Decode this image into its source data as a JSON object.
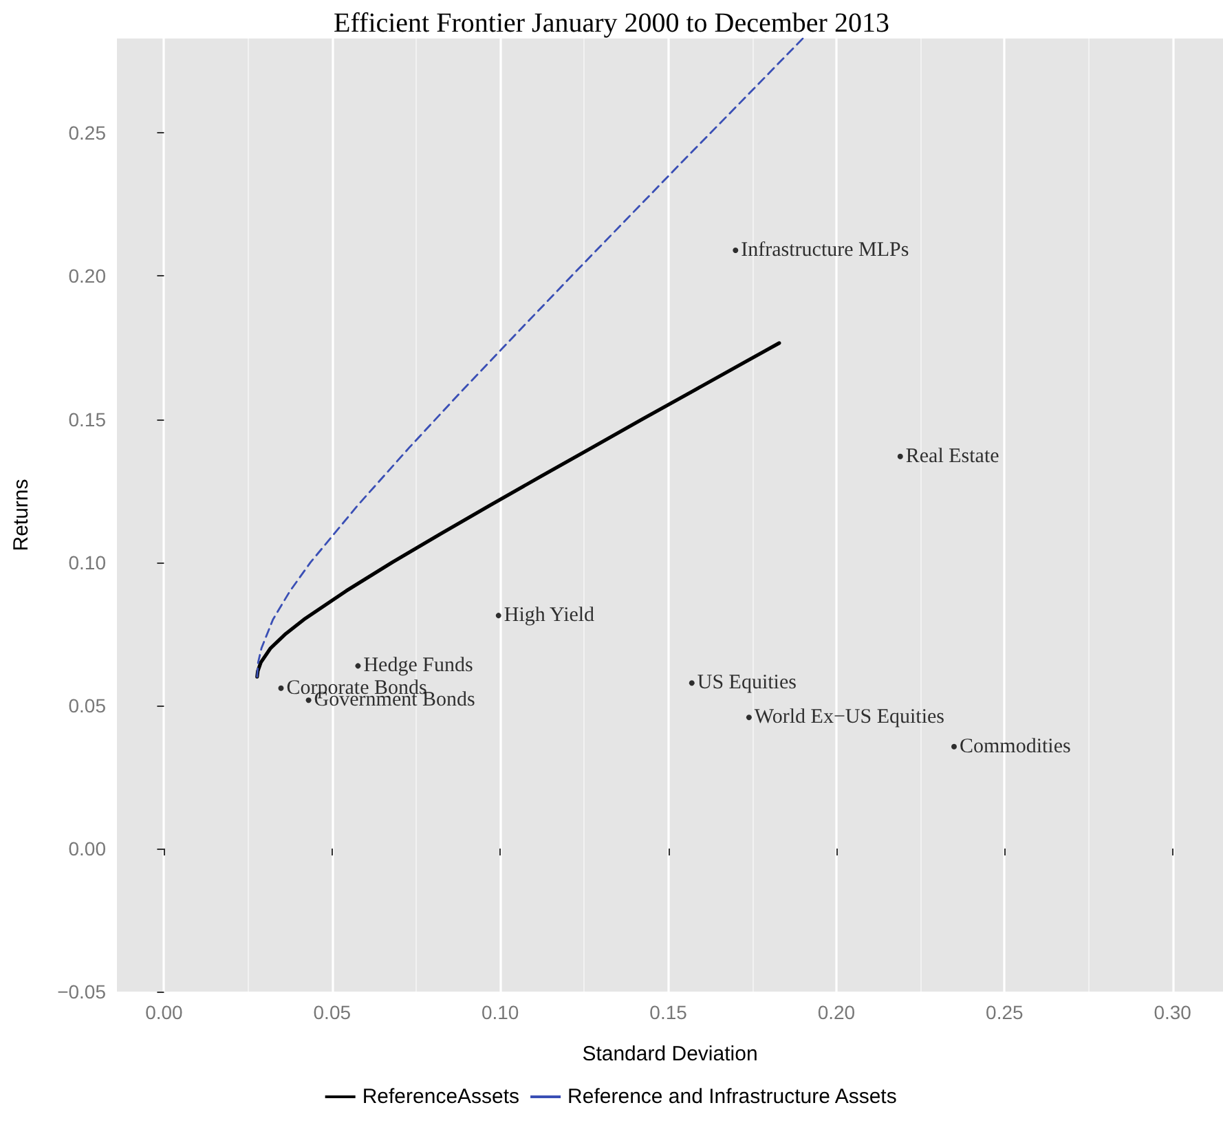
{
  "chart_data": {
    "type": "line",
    "title": "Efficient Frontier January 2000 to December 2013",
    "xlabel": "Standard Deviation",
    "ylabel": "Returns",
    "xlim": [
      -0.014,
      0.315
    ],
    "ylim": [
      -0.05,
      0.283
    ],
    "xticks": [
      {
        "value": 0,
        "label": "0.00"
      },
      {
        "value": 0.05,
        "label": "0.05"
      },
      {
        "value": 0.1,
        "label": "0.10"
      },
      {
        "value": 0.15,
        "label": "0.15"
      },
      {
        "value": 0.2,
        "label": "0.20"
      },
      {
        "value": 0.25,
        "label": "0.25"
      },
      {
        "value": 0.3,
        "label": "0.30"
      }
    ],
    "yticks": [
      {
        "value": -0.05,
        "label": "−0.05"
      },
      {
        "value": 0,
        "label": "0.00"
      },
      {
        "value": 0.05,
        "label": "0.05"
      },
      {
        "value": 0.1,
        "label": "0.10"
      },
      {
        "value": 0.15,
        "label": "0.15"
      },
      {
        "value": 0.2,
        "label": "0.20"
      },
      {
        "value": 0.25,
        "label": "0.25"
      }
    ],
    "grid": "x",
    "legend": "bottom",
    "marker": "none",
    "series": [
      {
        "name": "ReferenceAssets",
        "color": "#000000",
        "line_style": "solid",
        "x": [
          0.0277,
          0.0279,
          0.0288,
          0.0317,
          0.0362,
          0.0416,
          0.0542,
          0.0679,
          0.0824,
          0.0971,
          0.1121,
          0.1272,
          0.1423,
          0.1576,
          0.1729,
          0.183
        ],
        "values": [
          0.06,
          0.062,
          0.065,
          0.07,
          0.075,
          0.08,
          0.09,
          0.1,
          0.11,
          0.12,
          0.13,
          0.14,
          0.15,
          0.16,
          0.17,
          0.1766
        ]
      },
      {
        "name": "Reference and Infrastructure Assets",
        "color": "#3a4fb5",
        "line_style": "dashed",
        "x": [
          0.0277,
          0.028,
          0.029,
          0.0324,
          0.0375,
          0.0436,
          0.0577,
          0.0729,
          0.0887,
          0.1049,
          0.1212,
          0.1377,
          0.1542,
          0.1709,
          0.19
        ],
        "values": [
          0.06,
          0.065,
          0.07,
          0.08,
          0.09,
          0.1,
          0.12,
          0.14,
          0.16,
          0.18,
          0.2,
          0.22,
          0.24,
          0.26,
          0.283
        ]
      },
      {
        "type": "scatter",
        "marker": "circle",
        "color": "#000000",
        "x": [
          0.17,
          0.219,
          0.0995,
          0.0577,
          0.0348,
          0.043,
          0.157,
          0.174,
          0.235
        ],
        "values": [
          0.209,
          0.137,
          0.0814,
          0.0638,
          0.056,
          0.0518,
          0.0578,
          0.0458,
          0.0356
        ],
        "value_labels": [
          "Infrastructure MLPs",
          "Real Estate",
          "High Yield",
          "Hedge Funds",
          "Corporate Bonds",
          "Government Bonds",
          "US Equities",
          "World Ex−US Equities",
          "Commodities"
        ]
      }
    ]
  }
}
